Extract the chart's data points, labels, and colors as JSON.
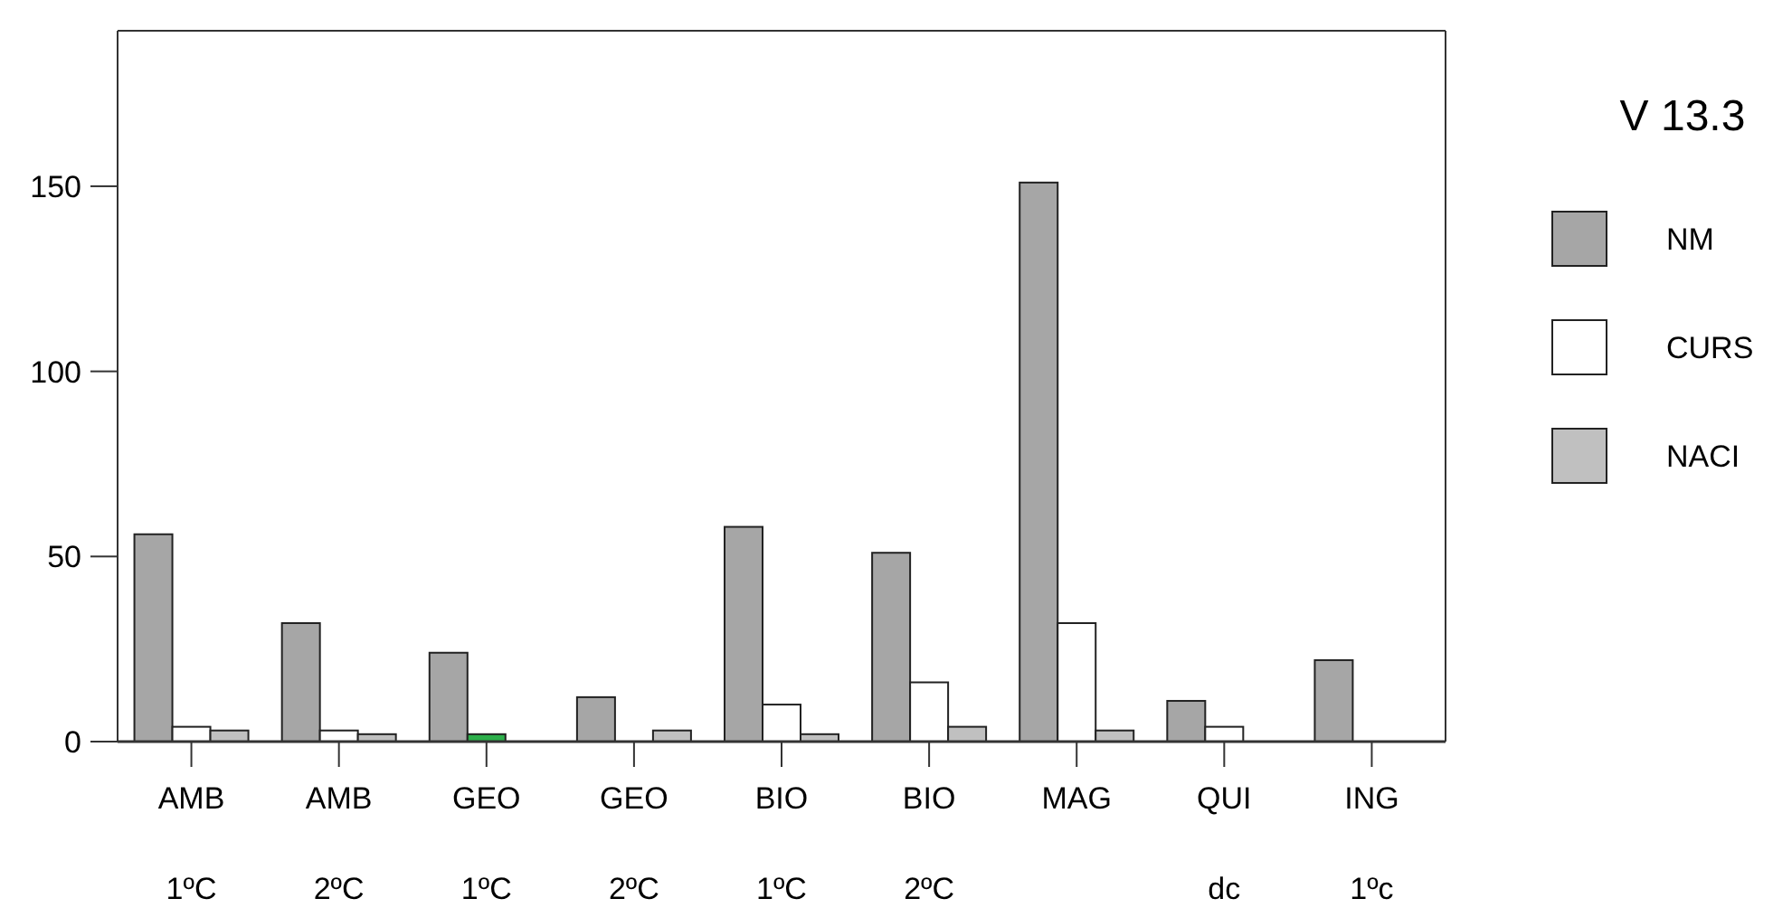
{
  "chart_data": {
    "type": "bar",
    "categories": [
      "AMB\n1ºC",
      "AMB\n2ºC",
      "GEO\n1ºC",
      "GEO\n2ºC",
      "BIO\n1ºC",
      "BIO\n2ºC",
      "MAG",
      "QUI\ndc",
      "ING\n1ºc"
    ],
    "series": [
      {
        "name": "NM",
        "color": "#a6a6a6",
        "values": [
          56,
          32,
          24,
          12,
          58,
          51,
          151,
          11,
          22
        ]
      },
      {
        "name": "CURS",
        "color": "#ffffff",
        "colors": [
          "#ffffff",
          "#ffffff",
          "#2db04b",
          "#ffffff",
          "#ffffff",
          "#ffffff",
          "#ffffff",
          "#ffffff",
          "#ffffff"
        ],
        "values": [
          4,
          3,
          2,
          0,
          10,
          16,
          32,
          4,
          0
        ]
      },
      {
        "name": "NACI",
        "color": "#c0c0c0",
        "values": [
          3,
          2,
          0,
          3,
          2,
          4,
          3,
          0,
          0
        ]
      }
    ],
    "legend_title": "V 13.3",
    "legend": "right",
    "ylim": [
      0,
      192
    ],
    "yticks": [
      0,
      50,
      100,
      150
    ],
    "grid": false
  }
}
